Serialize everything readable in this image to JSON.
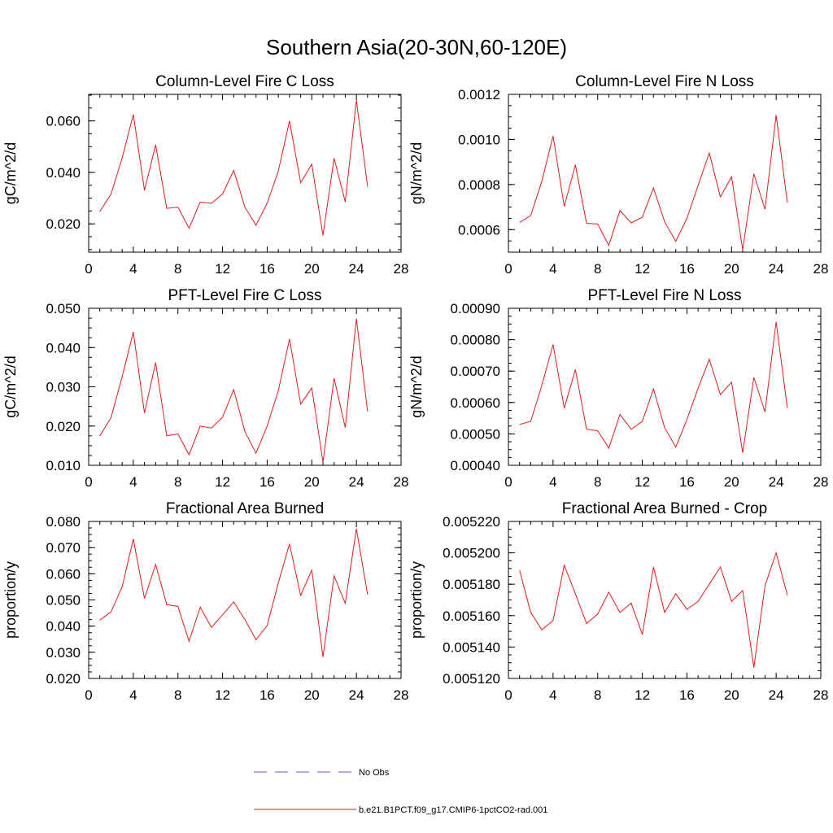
{
  "figure": {
    "title": "Southern Asia(20-30N,60-120E)"
  },
  "legend": {
    "items": [
      {
        "label": "No Obs",
        "color": "#5b5bd6",
        "dash": true
      },
      {
        "label": "b.e21.B1PCT.f09_g17.CMIP6-1pctCO2-rad.001",
        "color": "#e31a1c",
        "dash": false
      }
    ]
  },
  "chart_data": [
    {
      "type": "line",
      "title": "Column-Level Fire C Loss",
      "ylabel": "gC/m^2/d",
      "xlim": [
        0,
        28
      ],
      "xticks": [
        "0",
        "4",
        "8",
        "12",
        "16",
        "20",
        "24",
        "28"
      ],
      "ylim": [
        0.009,
        0.0703
      ],
      "yticks": [
        0.02,
        0.04,
        0.06
      ],
      "ytick_labels": [
        "0.020",
        "0.040",
        "0.060"
      ],
      "yminor": 0.005,
      "color": "#e31a1c",
      "x": [
        1,
        2,
        3,
        4,
        5,
        6,
        7,
        8,
        9,
        10,
        11,
        12,
        13,
        14,
        15,
        16,
        17,
        18,
        19,
        20,
        21,
        22,
        23,
        24,
        25
      ],
      "y": [
        0.0248,
        0.0315,
        0.0455,
        0.0625,
        0.033,
        0.0507,
        0.026,
        0.0265,
        0.0183,
        0.0285,
        0.028,
        0.0316,
        0.0408,
        0.0265,
        0.0195,
        0.028,
        0.0405,
        0.06,
        0.036,
        0.0432,
        0.0155,
        0.0455,
        0.0285,
        0.068,
        0.0345
      ]
    },
    {
      "type": "line",
      "title": "Column-Level Fire N Loss",
      "ylabel": "gN/m^2/d",
      "xlim": [
        0,
        28
      ],
      "xticks": [
        "0",
        "4",
        "8",
        "12",
        "16",
        "20",
        "24",
        "28"
      ],
      "ylim": [
        0.0005,
        0.0012
      ],
      "yticks": [
        0.0006,
        0.0008,
        0.001,
        0.0012
      ],
      "ytick_labels": [
        "0.0006",
        "0.0008",
        "0.0010",
        "0.0012"
      ],
      "yminor": 5e-05,
      "color": "#e31a1c",
      "x": [
        1,
        2,
        3,
        4,
        5,
        6,
        7,
        8,
        9,
        10,
        11,
        12,
        13,
        14,
        15,
        16,
        17,
        18,
        19,
        20,
        21,
        22,
        23,
        24,
        25
      ],
      "y": [
        0.000632,
        0.000662,
        0.000815,
        0.001015,
        0.000703,
        0.000888,
        0.000628,
        0.000625,
        0.00053,
        0.000685,
        0.00063,
        0.000655,
        0.000785,
        0.000635,
        0.000548,
        0.00065,
        0.000795,
        0.00094,
        0.000745,
        0.000835,
        0.00051,
        0.000848,
        0.00069,
        0.001108,
        0.00072
      ]
    },
    {
      "type": "line",
      "title": "PFT-Level Fire C Loss",
      "ylabel": "gC/m^2/d",
      "xlim": [
        0,
        28
      ],
      "xticks": [
        "0",
        "4",
        "8",
        "12",
        "16",
        "20",
        "24",
        "28"
      ],
      "ylim": [
        0.01,
        0.05
      ],
      "yticks": [
        0.01,
        0.02,
        0.03,
        0.04,
        0.05
      ],
      "ytick_labels": [
        "0.010",
        "0.020",
        "0.030",
        "0.040",
        "0.050"
      ],
      "yminor": 0.0025,
      "color": "#e31a1c",
      "x": [
        1,
        2,
        3,
        4,
        5,
        6,
        7,
        8,
        9,
        10,
        11,
        12,
        13,
        14,
        15,
        16,
        17,
        18,
        19,
        20,
        21,
        22,
        23,
        24,
        25
      ],
      "y": [
        0.0175,
        0.0221,
        0.0325,
        0.044,
        0.0233,
        0.0362,
        0.0175,
        0.018,
        0.0127,
        0.02,
        0.0195,
        0.0223,
        0.0293,
        0.0186,
        0.0131,
        0.02,
        0.029,
        0.0422,
        0.0256,
        0.0297,
        0.0108,
        0.0322,
        0.0196,
        0.0474,
        0.0237
      ]
    },
    {
      "type": "line",
      "title": "PFT-Level Fire N Loss",
      "ylabel": "gN/m^2/d",
      "xlim": [
        0,
        28
      ],
      "xticks": [
        "0",
        "4",
        "8",
        "12",
        "16",
        "20",
        "24",
        "28"
      ],
      "ylim": [
        0.0004,
        0.0009
      ],
      "yticks": [
        0.0004,
        0.0005,
        0.0006,
        0.0007,
        0.0008,
        0.0009
      ],
      "ytick_labels": [
        "0.00040",
        "0.00050",
        "0.00060",
        "0.00070",
        "0.00080",
        "0.00090"
      ],
      "yminor": 2.5e-05,
      "color": "#e31a1c",
      "x": [
        1,
        2,
        3,
        4,
        5,
        6,
        7,
        8,
        9,
        10,
        11,
        12,
        13,
        14,
        15,
        16,
        17,
        18,
        19,
        20,
        21,
        22,
        23,
        24,
        25
      ],
      "y": [
        0.00053,
        0.00054,
        0.000655,
        0.000785,
        0.000582,
        0.000705,
        0.000515,
        0.00051,
        0.000455,
        0.000562,
        0.000515,
        0.00054,
        0.000643,
        0.00052,
        0.000458,
        0.000545,
        0.000645,
        0.000738,
        0.000625,
        0.000665,
        0.00044,
        0.00068,
        0.00057,
        0.000857,
        0.000582
      ]
    },
    {
      "type": "line",
      "title": "Fractional Area Burned",
      "ylabel": "proportion/y",
      "xlim": [
        0,
        28
      ],
      "xticks": [
        "0",
        "4",
        "8",
        "12",
        "16",
        "20",
        "24",
        "28"
      ],
      "ylim": [
        0.02,
        0.08
      ],
      "yticks": [
        0.02,
        0.03,
        0.04,
        0.05,
        0.06,
        0.07,
        0.08
      ],
      "ytick_labels": [
        "0.020",
        "0.030",
        "0.040",
        "0.050",
        "0.060",
        "0.070",
        "0.080"
      ],
      "yminor": 0.0025,
      "color": "#e31a1c",
      "x": [
        1,
        2,
        3,
        4,
        5,
        6,
        7,
        8,
        9,
        10,
        11,
        12,
        13,
        14,
        15,
        16,
        17,
        18,
        19,
        20,
        21,
        22,
        23,
        24,
        25
      ],
      "y": [
        0.0423,
        0.0454,
        0.055,
        0.0733,
        0.0506,
        0.0636,
        0.0482,
        0.0475,
        0.0342,
        0.0472,
        0.0395,
        0.0443,
        0.0493,
        0.0425,
        0.0348,
        0.0402,
        0.0565,
        0.0714,
        0.0517,
        0.0614,
        0.0282,
        0.0592,
        0.0487,
        0.0772,
        0.052
      ]
    },
    {
      "type": "line",
      "title": "Fractional Area Burned - Crop",
      "ylabel": "proportion/y",
      "xlim": [
        0,
        28
      ],
      "xticks": [
        "0",
        "4",
        "8",
        "12",
        "16",
        "20",
        "24",
        "28"
      ],
      "ylim": [
        0.00512,
        0.00522
      ],
      "yticks": [
        0.00512,
        0.00514,
        0.00516,
        0.00518,
        0.0052,
        0.00522
      ],
      "ytick_labels": [
        "0.005120",
        "0.005140",
        "0.005160",
        "0.005180",
        "0.005200",
        "0.005220"
      ],
      "yminor": 5e-06,
      "color": "#e31a1c",
      "x": [
        1,
        2,
        3,
        4,
        5,
        6,
        7,
        8,
        9,
        10,
        11,
        12,
        13,
        14,
        15,
        16,
        17,
        18,
        19,
        20,
        21,
        22,
        23,
        24,
        25
      ],
      "y": [
        0.005189,
        0.005162,
        0.005151,
        0.005157,
        0.005192,
        0.005174,
        0.005155,
        0.005161,
        0.005175,
        0.005162,
        0.005168,
        0.005148,
        0.005191,
        0.005162,
        0.005174,
        0.005164,
        0.005169,
        0.00518,
        0.005191,
        0.005169,
        0.005176,
        0.005127,
        0.005179,
        0.0052,
        0.005173
      ]
    }
  ]
}
